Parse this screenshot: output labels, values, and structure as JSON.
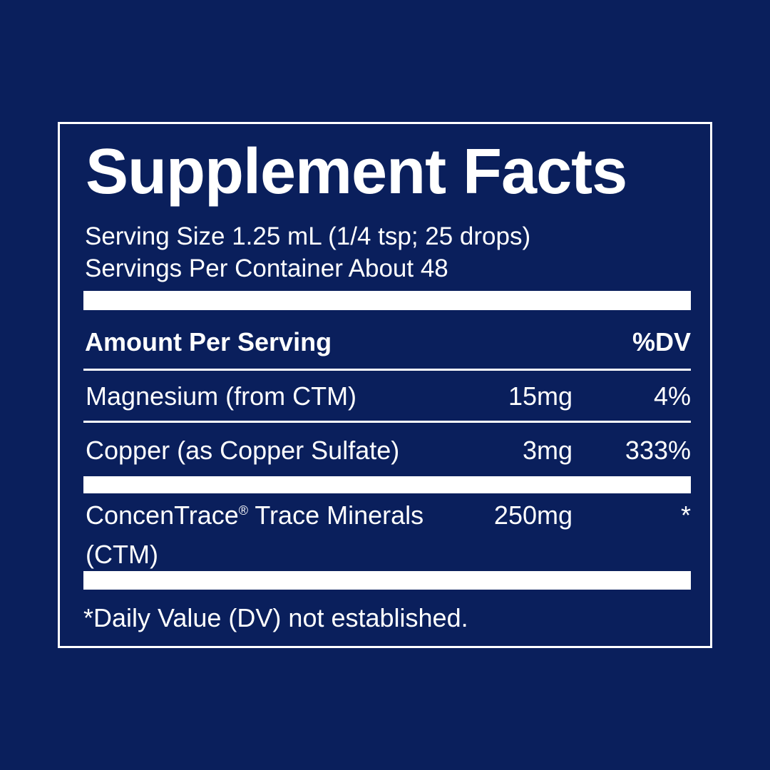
{
  "label": {
    "title": "Supplement Facts",
    "serving_size": "Serving Size 1.25 mL (1/4 tsp; 25 drops)",
    "servings_per_container": "Servings Per Container About 48",
    "header_amount": "Amount Per Serving",
    "header_dv": "%DV",
    "rows": [
      {
        "name": "Magnesium (from CTM)",
        "amount": "15mg",
        "dv": "4%"
      },
      {
        "name": "Copper (as Copper Sulfate)",
        "amount": "3mg",
        "dv": "333%"
      },
      {
        "name": "ConcenTrace",
        "name_mark": "®",
        "name_rest": " Trace Minerals",
        "name_line2": "(CTM)",
        "amount": "250mg",
        "dv": "*"
      }
    ],
    "footnote": "*Daily Value (DV) not established."
  },
  "colors": {
    "background": "#0a1f5c",
    "foreground": "#ffffff"
  }
}
